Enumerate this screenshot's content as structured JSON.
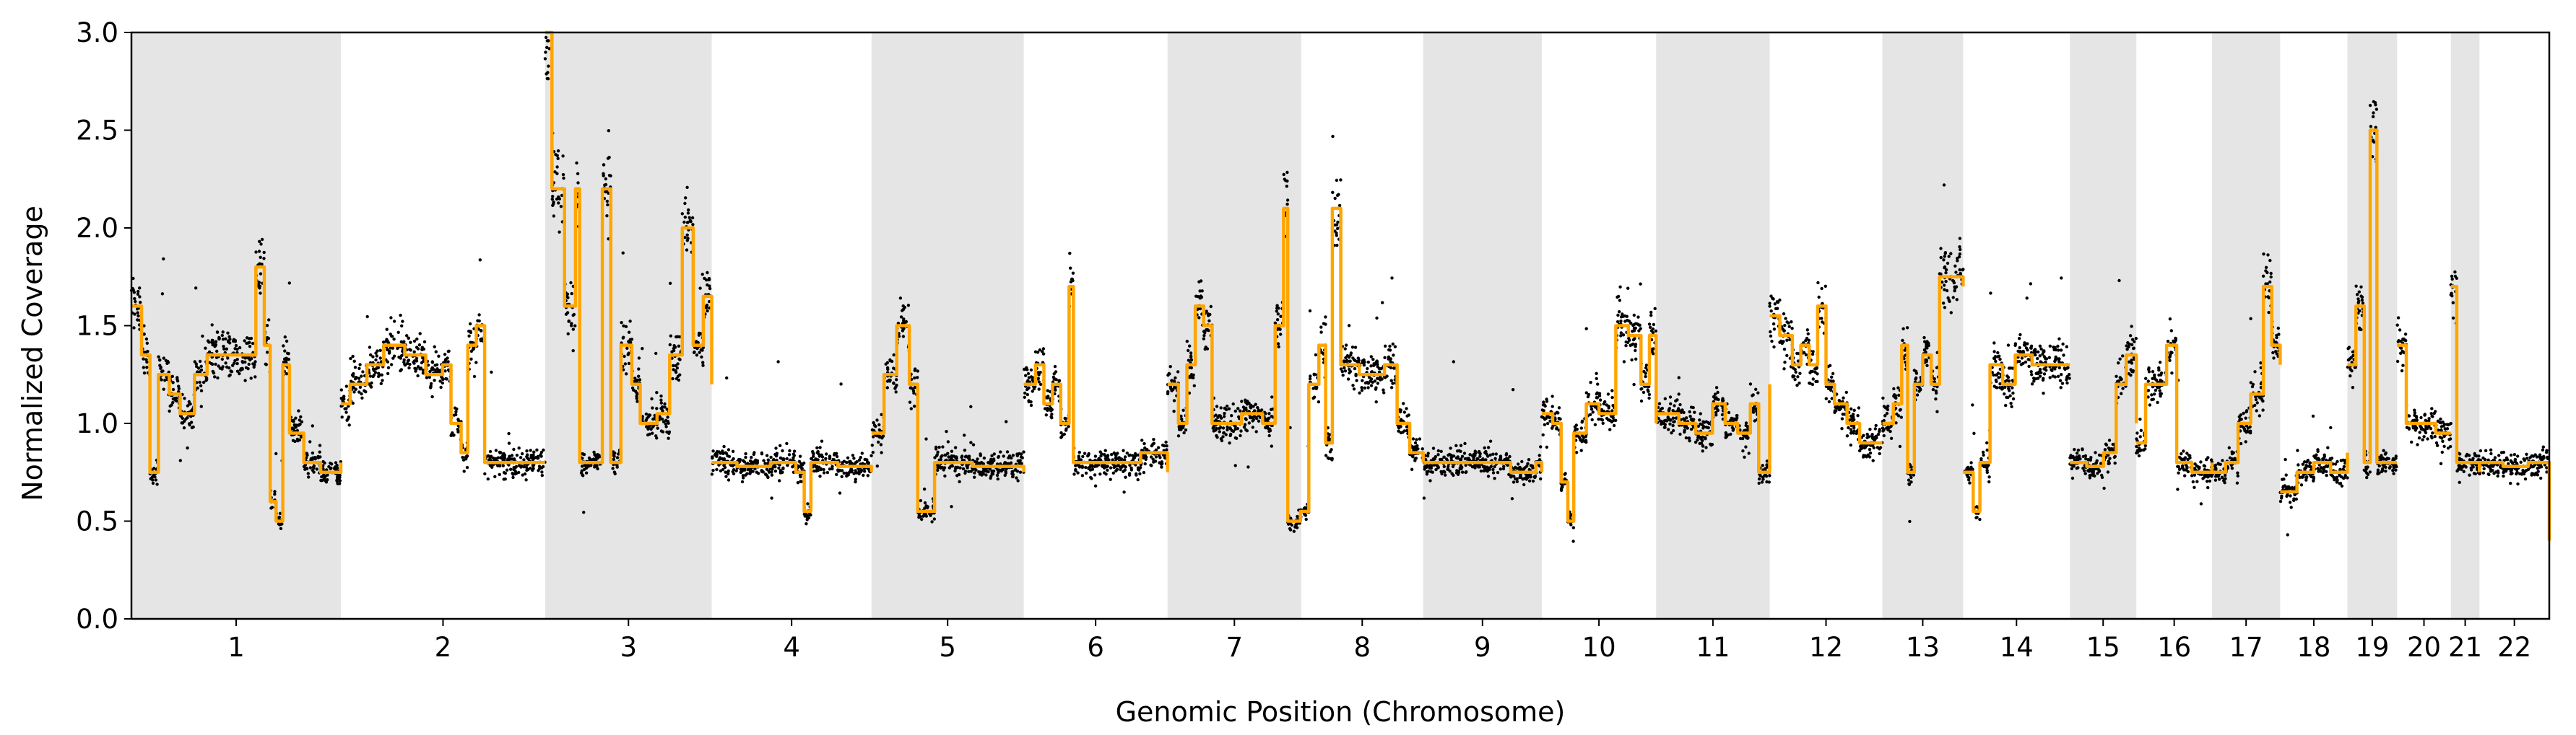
{
  "chart_data": {
    "type": "scatter",
    "title": "",
    "xlabel": "Genomic Position (Chromosome)",
    "ylabel": "Normalized Coverage",
    "xlim": [
      0,
      2875
    ],
    "ylim": [
      0,
      3.0
    ],
    "y_ticks": [
      "0.0",
      "0.5",
      "1.0",
      "1.5",
      "2.0",
      "2.5",
      "3.0"
    ],
    "grid": false,
    "legend": "none",
    "x_unit": "Mb",
    "colors": {
      "points": "#000000",
      "segments": "#ffa500",
      "shade": "#e5e5e5",
      "axis": "#000000"
    },
    "chromosomes": [
      {
        "name": "1",
        "start": 0,
        "end": 249,
        "shaded": true
      },
      {
        "name": "2",
        "start": 249,
        "end": 492,
        "shaded": false
      },
      {
        "name": "3",
        "start": 492,
        "end": 690,
        "shaded": true
      },
      {
        "name": "4",
        "start": 690,
        "end": 880,
        "shaded": false
      },
      {
        "name": "5",
        "start": 880,
        "end": 1061,
        "shaded": true
      },
      {
        "name": "6",
        "start": 1061,
        "end": 1232,
        "shaded": false
      },
      {
        "name": "7",
        "start": 1232,
        "end": 1391,
        "shaded": true
      },
      {
        "name": "8",
        "start": 1391,
        "end": 1536,
        "shaded": false
      },
      {
        "name": "9",
        "start": 1536,
        "end": 1677,
        "shaded": true
      },
      {
        "name": "10",
        "start": 1677,
        "end": 1813,
        "shaded": false
      },
      {
        "name": "11",
        "start": 1813,
        "end": 1948,
        "shaded": true
      },
      {
        "name": "12",
        "start": 1948,
        "end": 2082,
        "shaded": false
      },
      {
        "name": "13",
        "start": 2082,
        "end": 2178,
        "shaded": true
      },
      {
        "name": "14",
        "start": 2178,
        "end": 2305,
        "shaded": false
      },
      {
        "name": "15",
        "start": 2305,
        "end": 2384,
        "shaded": true
      },
      {
        "name": "16",
        "start": 2384,
        "end": 2474,
        "shaded": false
      },
      {
        "name": "17",
        "start": 2474,
        "end": 2555,
        "shaded": true
      },
      {
        "name": "18",
        "start": 2555,
        "end": 2635,
        "shaded": false
      },
      {
        "name": "19",
        "start": 2635,
        "end": 2694,
        "shaded": true
      },
      {
        "name": "20",
        "start": 2694,
        "end": 2758,
        "shaded": false
      },
      {
        "name": "21",
        "start": 2758,
        "end": 2792,
        "shaded": true
      },
      {
        "name": "22",
        "start": 2792,
        "end": 2875,
        "shaded": false
      }
    ],
    "segments": [
      {
        "chrom": "1",
        "points": [
          [
            0,
            1.6
          ],
          [
            12,
            1.35
          ],
          [
            22,
            0.75
          ],
          [
            32,
            1.25
          ],
          [
            45,
            1.15
          ],
          [
            58,
            1.05
          ],
          [
            75,
            1.25
          ],
          [
            90,
            1.35
          ],
          [
            138,
            1.35
          ],
          [
            148,
            1.8
          ],
          [
            158,
            1.4
          ],
          [
            165,
            0.6
          ],
          [
            172,
            0.5
          ],
          [
            180,
            1.3
          ],
          [
            188,
            0.95
          ],
          [
            205,
            0.8
          ],
          [
            225,
            0.75
          ],
          [
            249,
            0.8
          ]
        ]
      },
      {
        "chrom": "2",
        "points": [
          [
            249,
            1.1
          ],
          [
            260,
            1.2
          ],
          [
            280,
            1.3
          ],
          [
            300,
            1.4
          ],
          [
            325,
            1.35
          ],
          [
            350,
            1.25
          ],
          [
            370,
            1.3
          ],
          [
            380,
            1.0
          ],
          [
            392,
            0.85
          ],
          [
            400,
            1.4
          ],
          [
            410,
            1.5
          ],
          [
            420,
            0.8
          ],
          [
            460,
            0.8
          ],
          [
            492,
            0.8
          ]
        ]
      },
      {
        "chrom": "3",
        "points": [
          [
            492,
            3.0
          ],
          [
            500,
            2.2
          ],
          [
            515,
            1.6
          ],
          [
            528,
            2.2
          ],
          [
            533,
            0.8
          ],
          [
            548,
            0.8
          ],
          [
            560,
            2.2
          ],
          [
            570,
            0.8
          ],
          [
            582,
            1.4
          ],
          [
            595,
            1.2
          ],
          [
            605,
            1.0
          ],
          [
            625,
            1.05
          ],
          [
            640,
            1.35
          ],
          [
            655,
            2.0
          ],
          [
            668,
            1.4
          ],
          [
            680,
            1.65
          ],
          [
            690,
            1.2
          ]
        ]
      },
      {
        "chrom": "4",
        "points": [
          [
            690,
            0.8
          ],
          [
            720,
            0.78
          ],
          [
            760,
            0.8
          ],
          [
            790,
            0.75
          ],
          [
            800,
            0.55
          ],
          [
            808,
            0.8
          ],
          [
            840,
            0.78
          ],
          [
            880,
            0.75
          ]
        ]
      },
      {
        "chrom": "5",
        "points": [
          [
            880,
            0.95
          ],
          [
            895,
            1.25
          ],
          [
            910,
            1.5
          ],
          [
            925,
            1.2
          ],
          [
            935,
            0.55
          ],
          [
            945,
            0.55
          ],
          [
            955,
            0.8
          ],
          [
            1000,
            0.78
          ],
          [
            1040,
            0.78
          ],
          [
            1061,
            0.75
          ]
        ]
      },
      {
        "chrom": "6",
        "points": [
          [
            1061,
            1.2
          ],
          [
            1075,
            1.3
          ],
          [
            1085,
            1.1
          ],
          [
            1095,
            1.2
          ],
          [
            1105,
            1.0
          ],
          [
            1115,
            1.7
          ],
          [
            1120,
            0.8
          ],
          [
            1170,
            0.8
          ],
          [
            1200,
            0.85
          ],
          [
            1232,
            0.75
          ]
        ]
      },
      {
        "chrom": "7",
        "points": [
          [
            1232,
            1.2
          ],
          [
            1245,
            1.0
          ],
          [
            1255,
            1.3
          ],
          [
            1265,
            1.6
          ],
          [
            1275,
            1.5
          ],
          [
            1285,
            1.0
          ],
          [
            1320,
            1.05
          ],
          [
            1345,
            1.0
          ],
          [
            1360,
            1.5
          ],
          [
            1370,
            2.1
          ],
          [
            1375,
            0.5
          ],
          [
            1390,
            0.55
          ],
          [
            1391,
            0.55
          ]
        ]
      },
      {
        "chrom": "8",
        "points": [
          [
            1391,
            0.55
          ],
          [
            1400,
            1.2
          ],
          [
            1412,
            1.4
          ],
          [
            1420,
            0.9
          ],
          [
            1428,
            2.1
          ],
          [
            1438,
            1.3
          ],
          [
            1460,
            1.25
          ],
          [
            1490,
            1.3
          ],
          [
            1505,
            1.0
          ],
          [
            1520,
            0.85
          ],
          [
            1536,
            0.8
          ]
        ]
      },
      {
        "chrom": "9",
        "points": [
          [
            1536,
            0.8
          ],
          [
            1560,
            0.8
          ],
          [
            1600,
            0.8
          ],
          [
            1640,
            0.75
          ],
          [
            1670,
            0.8
          ],
          [
            1677,
            0.75
          ]
        ]
      },
      {
        "chrom": "10",
        "points": [
          [
            1677,
            1.05
          ],
          [
            1690,
            1.0
          ],
          [
            1700,
            0.7
          ],
          [
            1708,
            0.5
          ],
          [
            1715,
            0.95
          ],
          [
            1730,
            1.1
          ],
          [
            1745,
            1.05
          ],
          [
            1765,
            1.5
          ],
          [
            1780,
            1.45
          ],
          [
            1795,
            1.2
          ],
          [
            1805,
            1.45
          ],
          [
            1813,
            1.0
          ]
        ]
      },
      {
        "chrom": "11",
        "points": [
          [
            1813,
            1.05
          ],
          [
            1840,
            1.0
          ],
          [
            1860,
            0.95
          ],
          [
            1880,
            1.1
          ],
          [
            1895,
            1.0
          ],
          [
            1910,
            0.95
          ],
          [
            1925,
            1.1
          ],
          [
            1935,
            0.75
          ],
          [
            1948,
            1.2
          ]
        ]
      },
      {
        "chrom": "12",
        "points": [
          [
            1948,
            1.55
          ],
          [
            1960,
            1.45
          ],
          [
            1975,
            1.3
          ],
          [
            1985,
            1.4
          ],
          [
            1995,
            1.3
          ],
          [
            2005,
            1.6
          ],
          [
            2015,
            1.2
          ],
          [
            2025,
            1.1
          ],
          [
            2040,
            1.0
          ],
          [
            2055,
            0.9
          ],
          [
            2082,
            0.9
          ]
        ]
      },
      {
        "chrom": "13",
        "points": [
          [
            2082,
            1.0
          ],
          [
            2095,
            1.1
          ],
          [
            2105,
            1.4
          ],
          [
            2112,
            0.75
          ],
          [
            2120,
            1.2
          ],
          [
            2130,
            1.35
          ],
          [
            2140,
            1.2
          ],
          [
            2150,
            1.75
          ],
          [
            2178,
            1.7
          ]
        ]
      },
      {
        "chrom": "14",
        "points": [
          [
            2178,
            0.75
          ],
          [
            2190,
            0.55
          ],
          [
            2198,
            0.8
          ],
          [
            2210,
            1.3
          ],
          [
            2225,
            1.2
          ],
          [
            2240,
            1.35
          ],
          [
            2260,
            1.3
          ],
          [
            2280,
            1.3
          ],
          [
            2305,
            1.3
          ]
        ]
      },
      {
        "chrom": "15",
        "points": [
          [
            2305,
            0.8
          ],
          [
            2325,
            0.78
          ],
          [
            2345,
            0.85
          ],
          [
            2360,
            1.2
          ],
          [
            2372,
            1.35
          ],
          [
            2384,
            1.0
          ]
        ]
      },
      {
        "chrom": "16",
        "points": [
          [
            2384,
            0.9
          ],
          [
            2395,
            1.2
          ],
          [
            2410,
            1.2
          ],
          [
            2420,
            1.4
          ],
          [
            2432,
            0.8
          ],
          [
            2450,
            0.75
          ],
          [
            2474,
            0.8
          ]
        ]
      },
      {
        "chrom": "17",
        "points": [
          [
            2474,
            0.75
          ],
          [
            2490,
            0.8
          ],
          [
            2505,
            1.0
          ],
          [
            2520,
            1.15
          ],
          [
            2535,
            1.7
          ],
          [
            2545,
            1.4
          ],
          [
            2555,
            1.3
          ]
        ]
      },
      {
        "chrom": "18",
        "points": [
          [
            2555,
            0.65
          ],
          [
            2575,
            0.75
          ],
          [
            2595,
            0.8
          ],
          [
            2615,
            0.75
          ],
          [
            2635,
            0.85
          ]
        ]
      },
      {
        "chrom": "19",
        "points": [
          [
            2635,
            1.3
          ],
          [
            2645,
            1.6
          ],
          [
            2655,
            0.8
          ],
          [
            2662,
            2.5
          ],
          [
            2670,
            0.8
          ],
          [
            2694,
            0.8
          ]
        ]
      },
      {
        "chrom": "20",
        "points": [
          [
            2694,
            1.4
          ],
          [
            2705,
            1.0
          ],
          [
            2720,
            1.0
          ],
          [
            2740,
            0.95
          ],
          [
            2758,
            0.95
          ]
        ]
      },
      {
        "chrom": "21",
        "points": [
          [
            2758,
            1.7
          ],
          [
            2765,
            0.8
          ],
          [
            2792,
            0.75
          ]
        ]
      },
      {
        "chrom": "22",
        "points": [
          [
            2792,
            0.8
          ],
          [
            2820,
            0.78
          ],
          [
            2850,
            0.8
          ],
          [
            2875,
            0.4
          ]
        ]
      }
    ]
  }
}
